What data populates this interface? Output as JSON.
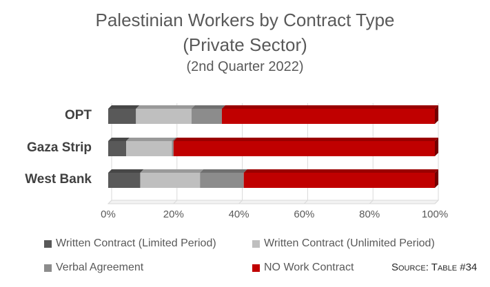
{
  "chart_data": {
    "type": "bar",
    "orientation": "horizontal",
    "stacked": "percent",
    "title": "Palestinian Workers by Contract Type",
    "subtitle": "(Private Sector)",
    "subtitle2": "(2nd Quarter 2022)",
    "categories": [
      "OPT",
      "Gaza Strip",
      "West Bank"
    ],
    "series": [
      {
        "name": "Written Contract (Limited Period)",
        "color": "#595959",
        "values": [
          8.5,
          5.5,
          9.8
        ]
      },
      {
        "name": "Written Contract (Unlimited Period)",
        "color": "#bfbfbf",
        "values": [
          17.0,
          14.0,
          18.3
        ]
      },
      {
        "name": "Verbal Agreement",
        "color": "#8c8c8c",
        "values": [
          9.3,
          0.5,
          13.4
        ]
      },
      {
        "name": "NO Work Contract",
        "color": "#c00000",
        "values": [
          65.2,
          80.0,
          58.5
        ]
      }
    ],
    "xlim": [
      0,
      100
    ],
    "xticks": [
      "0%",
      "20%",
      "40%",
      "60%",
      "80%",
      "100%"
    ],
    "grid": "vertical-major",
    "legend_position": "bottom",
    "source": "Source: Table #34"
  }
}
